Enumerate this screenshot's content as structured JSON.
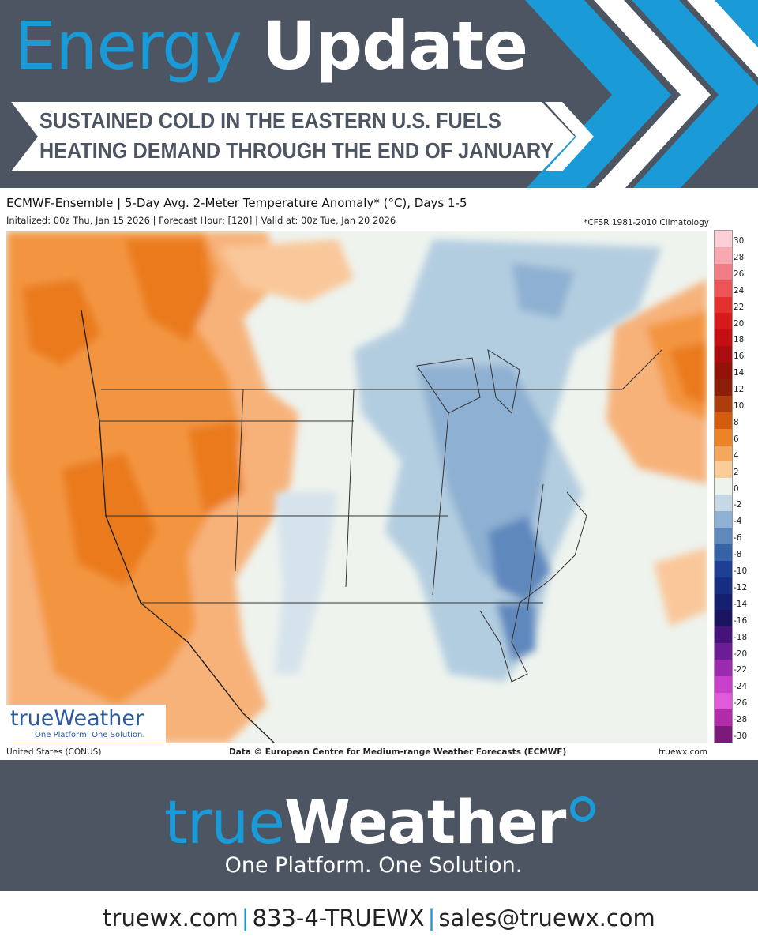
{
  "header": {
    "title_word1": "Energy",
    "title_word2": "Update",
    "subtitle_line1": "SUSTAINED COLD IN THE EASTERN U.S. FUELS",
    "subtitle_line2": "HEATING DEMAND THROUGH THE END OF JANUARY",
    "accent_color": "#1a9ad6",
    "background_color": "#4c5561"
  },
  "map": {
    "title": "ECMWF-Ensemble | 5-Day Avg. 2-Meter Temperature Anomaly* (°C), Days 1-5",
    "info": "Initalized: 00z Thu, Jan 15 2026  |  Forecast Hour: [120]  |  Valid at: 00z Tue, Jan 20 2026",
    "climatology_note": "*CFSR 1981-2010 Climatology",
    "region_label": "United States (CONUS)",
    "data_credit": "Data © European Centre for Medium-range Weather Forecasts (ECMWF)",
    "site": "truewx.com",
    "colorbar": {
      "labels": [
        "30",
        "28",
        "26",
        "24",
        "22",
        "20",
        "18",
        "16",
        "14",
        "12",
        "10",
        "8",
        "6",
        "4",
        "2",
        "0",
        "-2",
        "-4",
        "-6",
        "-8",
        "-10",
        "-12",
        "-14",
        "-16",
        "-18",
        "-20",
        "-22",
        "-24",
        "-26",
        "-28",
        "-30"
      ],
      "colors": [
        "#fcd0d6",
        "#f8a8b0",
        "#f27c86",
        "#ec5458",
        "#e4302e",
        "#d8181a",
        "#c40e12",
        "#aa0c10",
        "#921208",
        "#8a1e08",
        "#ad3d0a",
        "#d45c0e",
        "#ec8326",
        "#f5a75c",
        "#f9cc98",
        "#eef3ee",
        "#c6d8e6",
        "#8eb0d2",
        "#5f88bd",
        "#3663a8",
        "#1e3f93",
        "#172d82",
        "#15206f",
        "#1a1360",
        "#45137a",
        "#6c1c94",
        "#9a2aae",
        "#c640ca",
        "#e05adc",
        "#b02ca8",
        "#7c1a7a"
      ]
    },
    "logo_wordmark": "trueWeather",
    "logo_tagline": "One Platform. One Solution."
  },
  "brand": {
    "wordmark_part1": "true",
    "wordmark_part2": "Weather",
    "tagline": "One Platform. One Solution."
  },
  "contact": {
    "website": "truewx.com",
    "phone": "833-4-TRUEWX",
    "email": "sales@truewx.com",
    "separator": "|"
  }
}
